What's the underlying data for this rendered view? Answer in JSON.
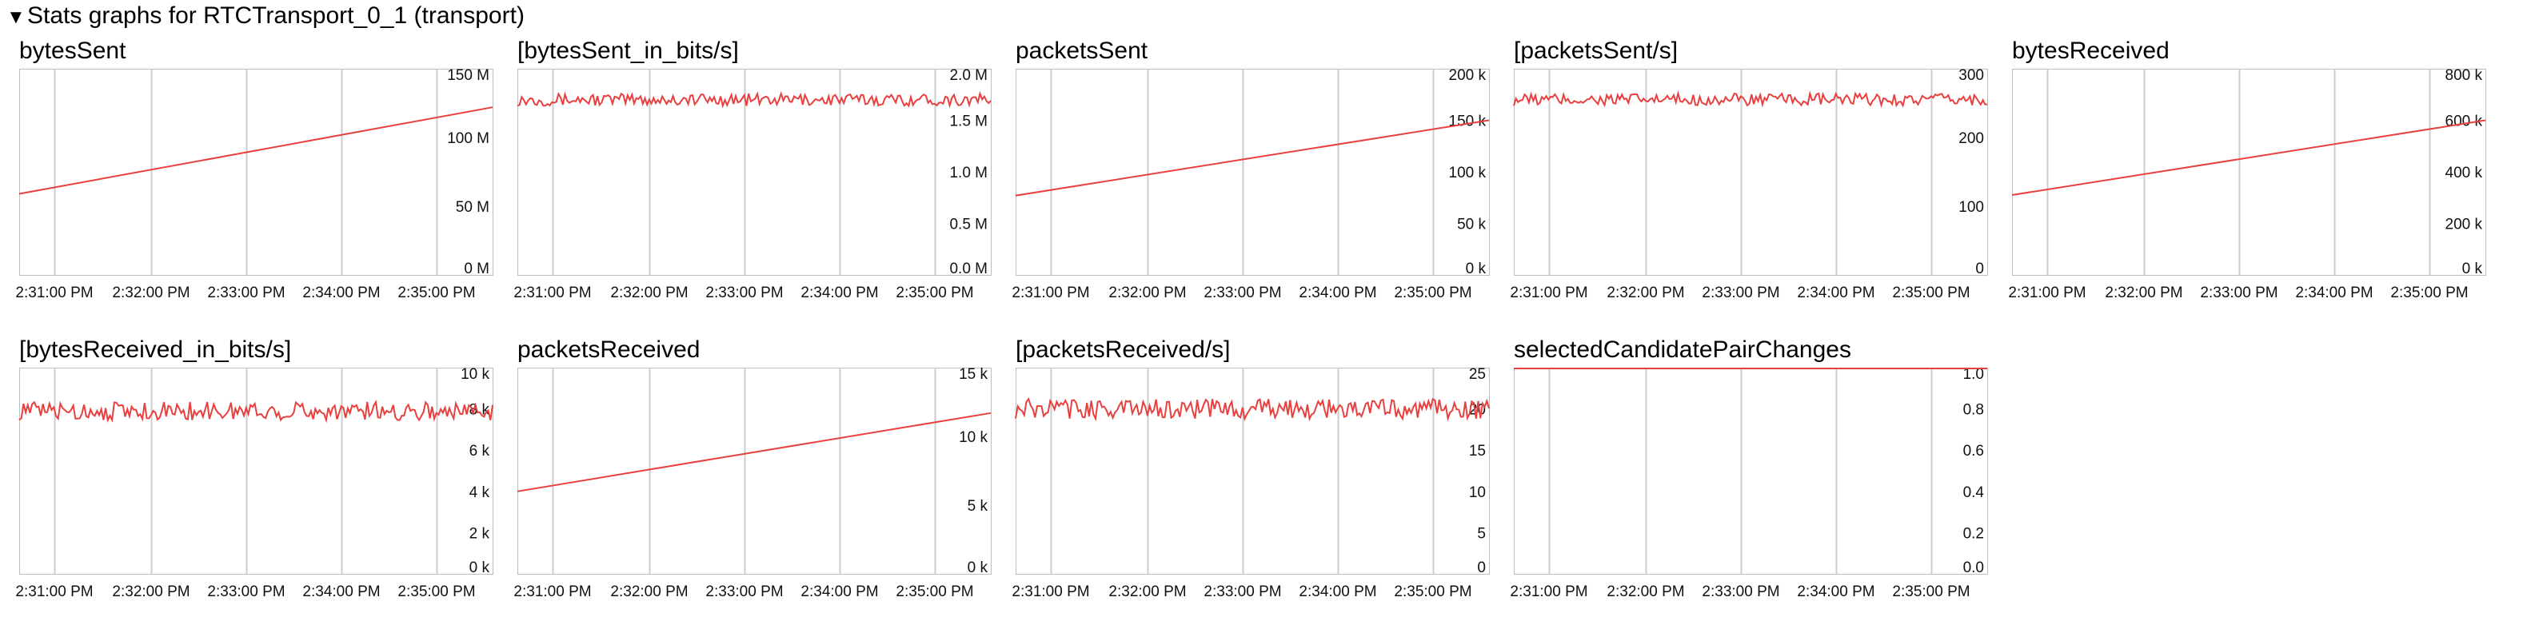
{
  "header": {
    "toggle_glyph": "▼",
    "title": "Stats graphs for RTCTransport_0_1 (transport)"
  },
  "x_ticks": [
    "2:31:00 PM",
    "2:32:00 PM",
    "2:33:00 PM",
    "2:34:00 PM",
    "2:35:00 PM"
  ],
  "colors": {
    "line": "#e8403f",
    "grid": "#cccccc",
    "frame": "#bdbdbd",
    "label": "#111111"
  },
  "chart_data": [
    {
      "type": "line",
      "title": "bytesSent",
      "xlabel": "",
      "ylabel": "",
      "ylim": [
        0,
        150000000
      ],
      "yticks": [
        "150 M",
        "100 M",
        "50 M",
        "0 M"
      ],
      "ytick_values": [
        150000000,
        100000000,
        50000000,
        0
      ],
      "series": [
        {
          "start": 59000000,
          "end": 122000000,
          "noise": 0
        }
      ]
    },
    {
      "type": "line",
      "title": "[bytesSent_in_bits/s]",
      "xlabel": "",
      "ylabel": "",
      "ylim": [
        0,
        2000000
      ],
      "yticks": [
        "2.0 M",
        "1.5 M",
        "1.0 M",
        "0.5 M",
        "0.0 M"
      ],
      "ytick_values": [
        2000000,
        1500000,
        1000000,
        500000,
        0
      ],
      "series": [
        {
          "start": 1700000,
          "end": 1700000,
          "noise": 60000
        }
      ]
    },
    {
      "type": "line",
      "title": "packetsSent",
      "xlabel": "",
      "ylabel": "",
      "ylim": [
        0,
        200000
      ],
      "yticks": [
        "200 k",
        "150 k",
        "100 k",
        "50 k",
        "0 k"
      ],
      "ytick_values": [
        200000,
        150000,
        100000,
        50000,
        0
      ],
      "series": [
        {
          "start": 77000.0,
          "end": 150000,
          "noise": 0
        }
      ]
    },
    {
      "type": "line",
      "title": "[packetsSent/s]",
      "xlabel": "",
      "ylabel": "",
      "ylim": [
        0,
        300
      ],
      "yticks": [
        "300",
        "200",
        "100",
        "0"
      ],
      "ytick_values": [
        300,
        200,
        100,
        0
      ],
      "series": [
        {
          "start": 255,
          "end": 255,
          "noise": 9
        }
      ]
    },
    {
      "type": "line",
      "title": "bytesReceived",
      "xlabel": "",
      "ylabel": "",
      "ylim": [
        0,
        800000
      ],
      "yticks": [
        "800 k",
        "600 k",
        "400 k",
        "200 k",
        "0 k"
      ],
      "ytick_values": [
        800000,
        600000,
        400000,
        200000,
        0
      ],
      "series": [
        {
          "start": 310000,
          "end": 600000,
          "noise": 0
        }
      ]
    },
    {
      "type": "line",
      "title": "[bytesReceived_in_bits/s]",
      "xlabel": "",
      "ylabel": "",
      "ylim": [
        0,
        10000
      ],
      "yticks": [
        "10 k",
        "8 k",
        "6 k",
        "4 k",
        "2 k",
        "0 k"
      ],
      "ytick_values": [
        10000,
        8000,
        6000,
        4000,
        2000,
        0
      ],
      "series": [
        {
          "start": 7900,
          "end": 7900,
          "noise": 450
        }
      ]
    },
    {
      "type": "line",
      "title": "packetsReceived",
      "xlabel": "",
      "ylabel": "",
      "ylim": [
        0,
        15000
      ],
      "yticks": [
        "15 k",
        "10 k",
        "5 k",
        "0 k"
      ],
      "ytick_values": [
        15000,
        10000,
        5000,
        0
      ],
      "series": [
        {
          "start": 6000,
          "end": 11700,
          "noise": 0
        }
      ]
    },
    {
      "type": "line",
      "title": "[packetsReceived/s]",
      "xlabel": "",
      "ylabel": "",
      "ylim": [
        0,
        25
      ],
      "yticks": [
        "25",
        "20",
        "15",
        "10",
        "5",
        "0"
      ],
      "ytick_values": [
        25,
        20,
        15,
        10,
        5,
        0
      ],
      "series": [
        {
          "start": 20,
          "end": 20,
          "noise": 1.2
        }
      ]
    },
    {
      "type": "line",
      "title": "selectedCandidatePairChanges",
      "xlabel": "",
      "ylabel": "",
      "ylim": [
        0,
        1.0
      ],
      "yticks": [
        "1.0",
        "0.8",
        "0.6",
        "0.4",
        "0.2",
        "0.0"
      ],
      "ytick_values": [
        1.0,
        0.8,
        0.6,
        0.4,
        0.2,
        0.0
      ],
      "series": [
        {
          "start": 1.0,
          "end": 1.0,
          "noise": 0
        }
      ]
    }
  ]
}
